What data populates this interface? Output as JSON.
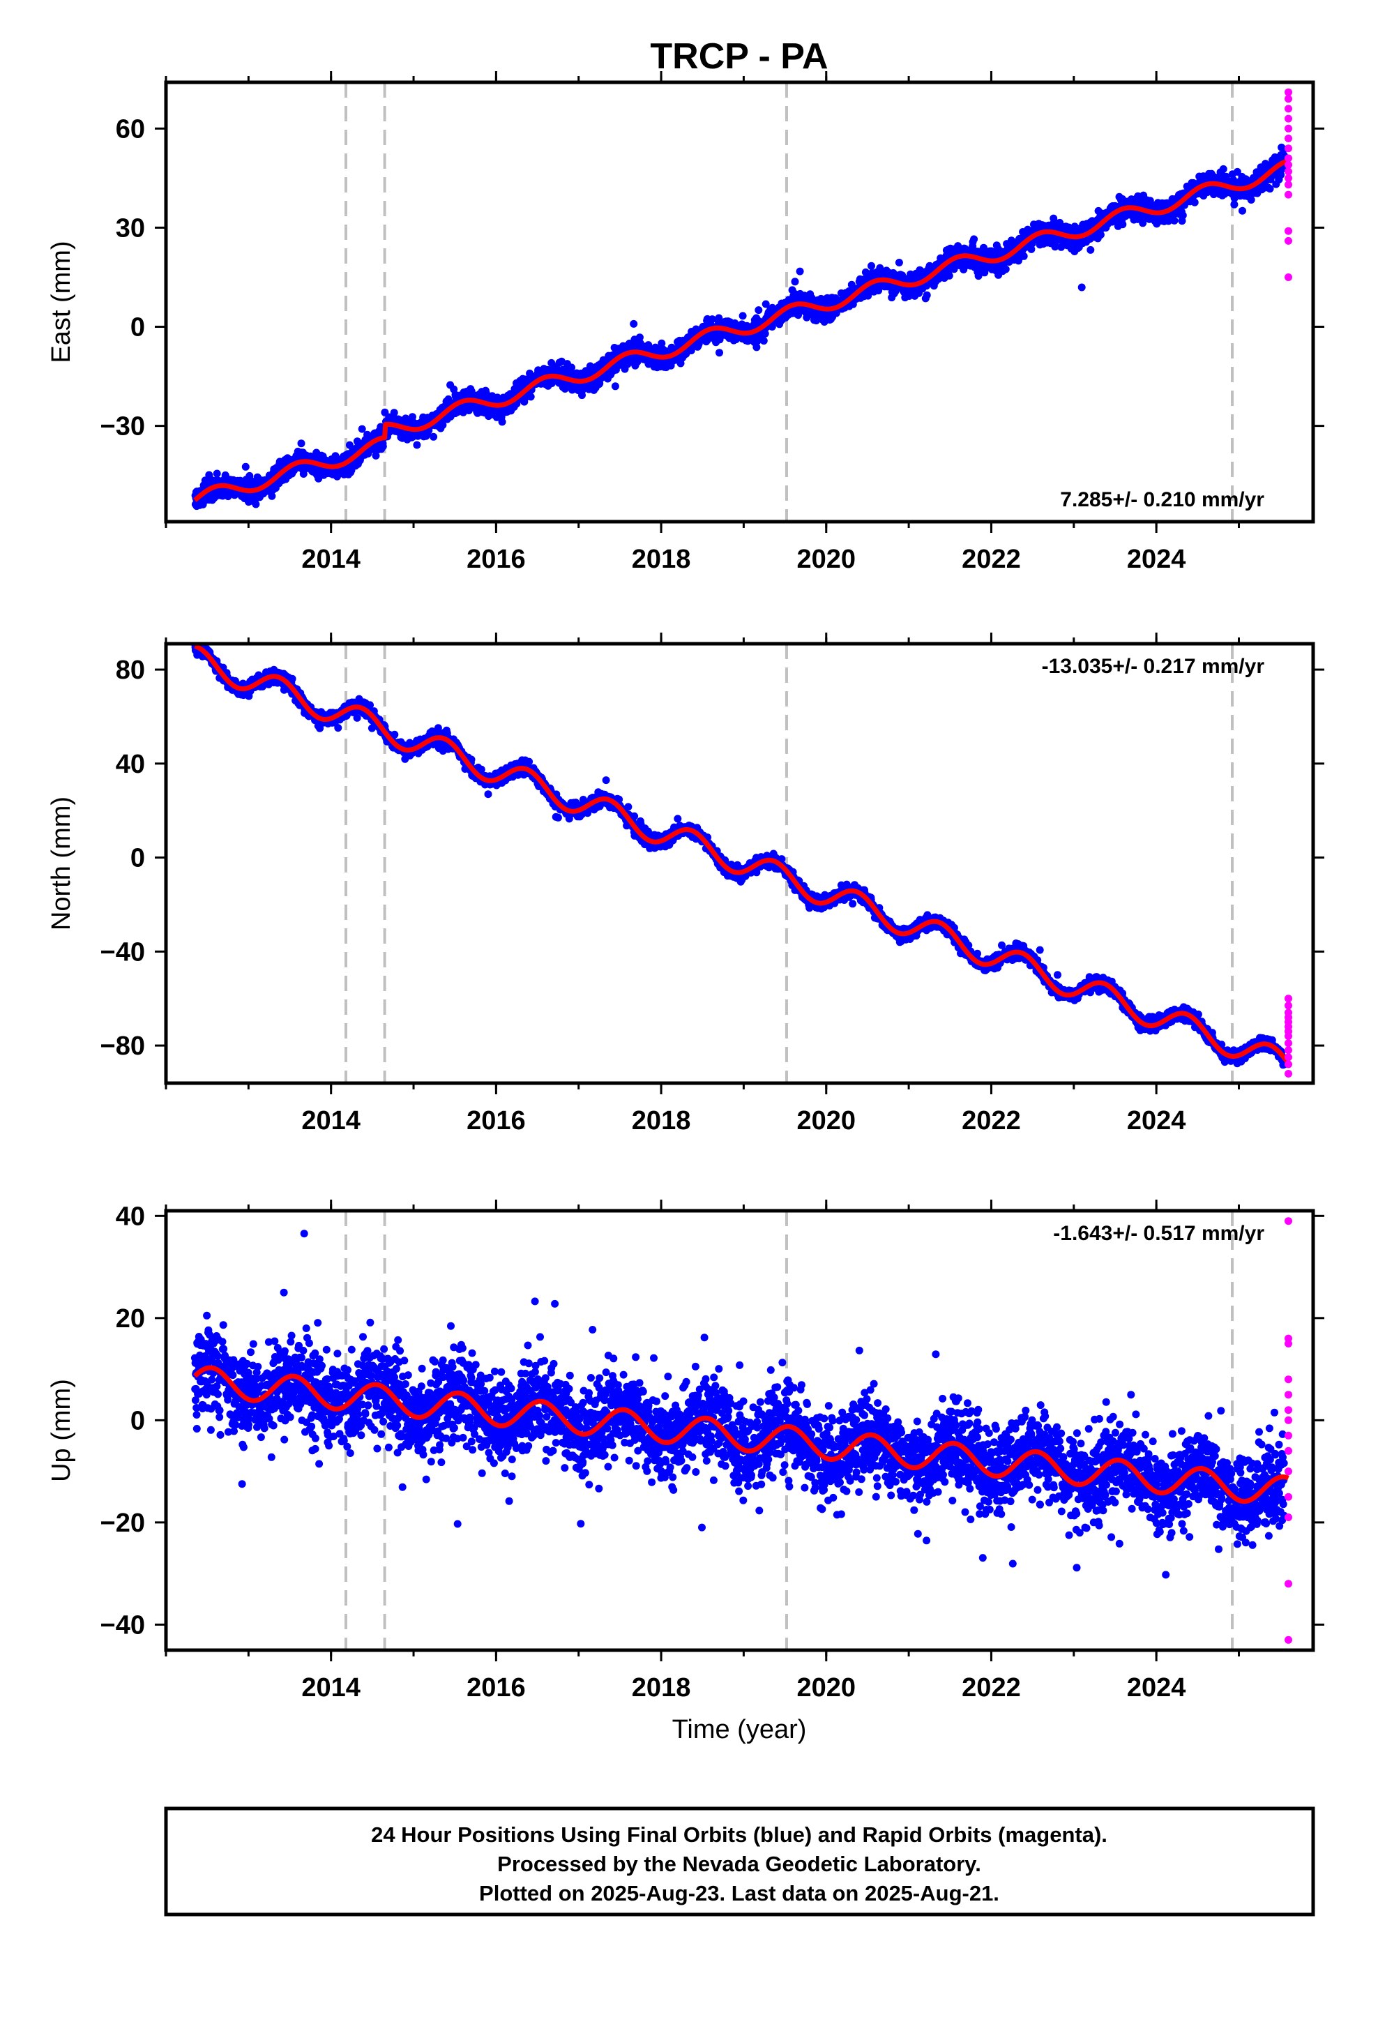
{
  "figure": {
    "title": "TRCP - PA",
    "xlabel": "Time (year)",
    "caption": [
      "24 Hour Positions Using Final Orbits (blue) and Rapid Orbits (magenta).",
      "Processed by the Nevada Geodetic Laboratory.",
      "Plotted on 2025-Aug-23. Last data on 2025-Aug-21."
    ]
  },
  "colors": {
    "final_orbits": "#0000ff",
    "rapid_orbits": "#ff00ff",
    "model_fit": "#ff0000",
    "event_lines": "#c0c0c0",
    "frame": "#000000"
  },
  "chart_data": [
    {
      "type": "scatter",
      "component": "East",
      "ylabel": "East (mm)",
      "rate_label": "7.285+/- 0.210 mm/yr",
      "xlim": [
        2012.0,
        2025.9
      ],
      "ylim": [
        -59,
        74
      ],
      "xticks": [
        2014,
        2016,
        2018,
        2020,
        2022,
        2024
      ],
      "yticks": [
        -30,
        0,
        30,
        60
      ],
      "trend": {
        "t0": 2012.35,
        "y0": -52.5,
        "rate": 7.285
      },
      "seasonal": {
        "amplitude": 2.3,
        "phase": 0.35
      },
      "offsets": [
        {
          "t": 2014.65,
          "dy": 4.0
        }
      ],
      "scatter_sd": 1.6,
      "final_span": [
        2012.35,
        2025.55
      ],
      "rapid_points": {
        "t": 2025.6,
        "values": [
          71,
          69,
          66,
          63,
          60,
          57,
          54,
          51,
          49,
          47,
          45,
          43,
          40,
          29,
          26,
          15
        ]
      },
      "event_lines": [
        2014.18,
        2014.65,
        2019.52,
        2024.92
      ],
      "grid": false
    },
    {
      "type": "scatter",
      "component": "North",
      "ylabel": "North (mm)",
      "rate_label": "-13.035+/- 0.217 mm/yr",
      "xlim": [
        2012.0,
        2025.9
      ],
      "ylim": [
        -96,
        91
      ],
      "xticks": [
        2014,
        2016,
        2018,
        2020,
        2022,
        2024
      ],
      "yticks": [
        -80,
        -40,
        0,
        40,
        80
      ],
      "trend": {
        "t0": 2012.35,
        "y0": 84.5,
        "rate": -13.035
      },
      "seasonal": {
        "amplitude": 5.5,
        "phase": 0.12
      },
      "offsets": [],
      "scatter_sd": 1.3,
      "final_span": [
        2012.35,
        2025.55
      ],
      "rapid_points": {
        "t": 2025.6,
        "values": [
          -60,
          -63,
          -66,
          -68,
          -70,
          -72,
          -74,
          -76,
          -79,
          -82,
          -85,
          -88,
          -92
        ]
      },
      "event_lines": [
        2014.18,
        2014.65,
        2019.52,
        2024.92
      ],
      "grid": false
    },
    {
      "type": "scatter",
      "component": "Up",
      "ylabel": "Up (mm)",
      "rate_label": "-1.643+/- 0.517 mm/yr",
      "xlim": [
        2012.0,
        2025.9
      ],
      "ylim": [
        -45,
        41
      ],
      "xticks": [
        2014,
        2016,
        2018,
        2020,
        2022,
        2024
      ],
      "yticks": [
        -40,
        -20,
        0,
        20,
        40
      ],
      "trend": {
        "t0": 2012.35,
        "y0": 7.8,
        "rate": -1.643
      },
      "seasonal": {
        "amplitude": 2.8,
        "phase": 0.3
      },
      "offsets": [],
      "scatter_sd": 4.2,
      "final_span": [
        2012.35,
        2025.55
      ],
      "rapid_points": {
        "t": 2025.6,
        "values": [
          39,
          16,
          15,
          8,
          5,
          2,
          0,
          -3,
          -6,
          -10,
          -15,
          -19,
          -32,
          -43
        ]
      },
      "event_lines": [
        2014.18,
        2014.65,
        2019.52,
        2024.92
      ],
      "grid": false
    }
  ]
}
